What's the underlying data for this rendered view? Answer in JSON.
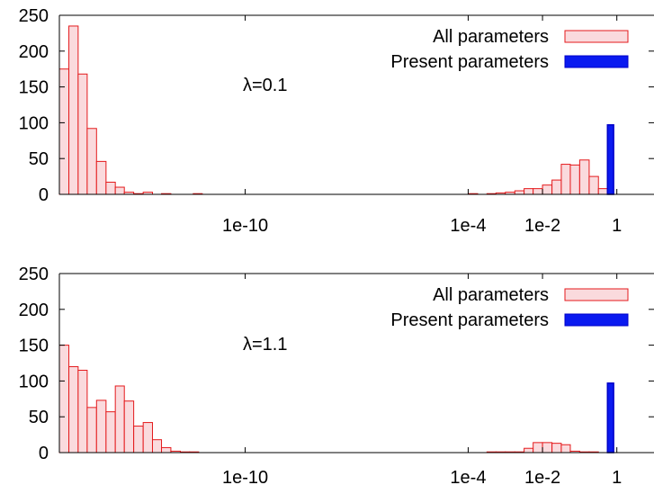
{
  "chart_data": [
    {
      "type": "bar",
      "annotation": "λ=0.1",
      "x_scale": "log",
      "xlim": [
        1e-15,
        10
      ],
      "x_ticks": [
        {
          "value": 1e-10,
          "label": "1e-10"
        },
        {
          "value": 0.0001,
          "label": "1e-4"
        },
        {
          "value": 0.01,
          "label": "1e-2"
        },
        {
          "value": 1,
          "label": "1"
        }
      ],
      "ylim": [
        0,
        250
      ],
      "y_ticks": [
        {
          "value": 0,
          "label": "0"
        },
        {
          "value": 50,
          "label": "50"
        },
        {
          "value": 100,
          "label": "100"
        },
        {
          "value": 150,
          "label": "150"
        },
        {
          "value": 200,
          "label": "200"
        },
        {
          "value": 250,
          "label": "250"
        }
      ],
      "grid": false,
      "legend_position": "top-right",
      "series": [
        {
          "name": "All parameters",
          "color_fill": "#fadadd",
          "color_edge": "#e41a1c",
          "bins": [
            {
              "x0": 1e-15,
              "x1": 1.8e-15,
              "value": 175
            },
            {
              "x0": 1.8e-15,
              "x1": 3.2e-15,
              "value": 235
            },
            {
              "x0": 3.2e-15,
              "x1": 5.6e-15,
              "value": 168
            },
            {
              "x0": 5.6e-15,
              "x1": 1e-14,
              "value": 92
            },
            {
              "x0": 1e-14,
              "x1": 1.8e-14,
              "value": 46
            },
            {
              "x0": 1.8e-14,
              "x1": 3.2e-14,
              "value": 17
            },
            {
              "x0": 3.2e-14,
              "x1": 5.6e-14,
              "value": 10
            },
            {
              "x0": 5.6e-14,
              "x1": 1e-13,
              "value": 3
            },
            {
              "x0": 1e-13,
              "x1": 1.8e-13,
              "value": 1
            },
            {
              "x0": 1.8e-13,
              "x1": 3.2e-13,
              "value": 3
            },
            {
              "x0": 3.2e-13,
              "x1": 5.6e-13,
              "value": 0
            },
            {
              "x0": 5.6e-13,
              "x1": 1e-12,
              "value": 1
            },
            {
              "x0": 4e-12,
              "x1": 7e-12,
              "value": 1
            },
            {
              "x0": 0.0001,
              "x1": 0.00018,
              "value": 1
            },
            {
              "x0": 0.00032,
              "x1": 0.00056,
              "value": 1
            },
            {
              "x0": 0.00056,
              "x1": 0.001,
              "value": 2
            },
            {
              "x0": 0.001,
              "x1": 0.0018,
              "value": 3
            },
            {
              "x0": 0.0018,
              "x1": 0.0032,
              "value": 5
            },
            {
              "x0": 0.0032,
              "x1": 0.0056,
              "value": 8
            },
            {
              "x0": 0.0056,
              "x1": 0.01,
              "value": 8
            },
            {
              "x0": 0.01,
              "x1": 0.018,
              "value": 13
            },
            {
              "x0": 0.018,
              "x1": 0.032,
              "value": 20
            },
            {
              "x0": 0.032,
              "x1": 0.056,
              "value": 42
            },
            {
              "x0": 0.056,
              "x1": 0.1,
              "value": 41
            },
            {
              "x0": 0.1,
              "x1": 0.18,
              "value": 48
            },
            {
              "x0": 0.18,
              "x1": 0.32,
              "value": 25
            },
            {
              "x0": 0.32,
              "x1": 0.56,
              "value": 8
            }
          ]
        },
        {
          "name": "Present parameters",
          "color_fill": "#0a1af0",
          "color_edge": "#0000c8",
          "bins": [
            {
              "x0": 0.56,
              "x1": 0.82,
              "value": 97
            }
          ]
        }
      ]
    },
    {
      "type": "bar",
      "annotation": "λ=1.1",
      "x_scale": "log",
      "xlim": [
        1e-15,
        10
      ],
      "x_ticks": [
        {
          "value": 1e-10,
          "label": "1e-10"
        },
        {
          "value": 0.0001,
          "label": "1e-4"
        },
        {
          "value": 0.01,
          "label": "1e-2"
        },
        {
          "value": 1,
          "label": "1"
        }
      ],
      "ylim": [
        0,
        250
      ],
      "y_ticks": [
        {
          "value": 0,
          "label": "0"
        },
        {
          "value": 50,
          "label": "50"
        },
        {
          "value": 100,
          "label": "100"
        },
        {
          "value": 150,
          "label": "150"
        },
        {
          "value": 200,
          "label": "200"
        },
        {
          "value": 250,
          "label": "250"
        }
      ],
      "grid": false,
      "legend_position": "top-right",
      "series": [
        {
          "name": "All parameters",
          "color_fill": "#fadadd",
          "color_edge": "#e41a1c",
          "bins": [
            {
              "x0": 1e-15,
              "x1": 1.8e-15,
              "value": 150
            },
            {
              "x0": 1.8e-15,
              "x1": 3.2e-15,
              "value": 120
            },
            {
              "x0": 3.2e-15,
              "x1": 5.6e-15,
              "value": 115
            },
            {
              "x0": 5.6e-15,
              "x1": 1e-14,
              "value": 63
            },
            {
              "x0": 1e-14,
              "x1": 1.8e-14,
              "value": 73
            },
            {
              "x0": 1.8e-14,
              "x1": 3.2e-14,
              "value": 57
            },
            {
              "x0": 3.2e-14,
              "x1": 5.6e-14,
              "value": 93
            },
            {
              "x0": 5.6e-14,
              "x1": 1e-13,
              "value": 72
            },
            {
              "x0": 1e-13,
              "x1": 1.8e-13,
              "value": 37
            },
            {
              "x0": 1.8e-13,
              "x1": 3.2e-13,
              "value": 42
            },
            {
              "x0": 3.2e-13,
              "x1": 5.6e-13,
              "value": 18
            },
            {
              "x0": 5.6e-13,
              "x1": 1e-12,
              "value": 7
            },
            {
              "x0": 1e-12,
              "x1": 1.8e-12,
              "value": 2
            },
            {
              "x0": 1.8e-12,
              "x1": 3.2e-12,
              "value": 1
            },
            {
              "x0": 3.2e-12,
              "x1": 5.6e-12,
              "value": 1
            },
            {
              "x0": 0.00032,
              "x1": 0.00056,
              "value": 1
            },
            {
              "x0": 0.00056,
              "x1": 0.001,
              "value": 1
            },
            {
              "x0": 0.001,
              "x1": 0.0018,
              "value": 1
            },
            {
              "x0": 0.0018,
              "x1": 0.0032,
              "value": 1
            },
            {
              "x0": 0.0032,
              "x1": 0.0056,
              "value": 6
            },
            {
              "x0": 0.0056,
              "x1": 0.01,
              "value": 14
            },
            {
              "x0": 0.01,
              "x1": 0.018,
              "value": 14
            },
            {
              "x0": 0.018,
              "x1": 0.032,
              "value": 13
            },
            {
              "x0": 0.032,
              "x1": 0.056,
              "value": 11
            },
            {
              "x0": 0.056,
              "x1": 0.1,
              "value": 2
            },
            {
              "x0": 0.1,
              "x1": 0.18,
              "value": 1
            },
            {
              "x0": 0.18,
              "x1": 0.32,
              "value": 1
            }
          ]
        },
        {
          "name": "Present parameters",
          "color_fill": "#0a1af0",
          "color_edge": "#0000c8",
          "bins": [
            {
              "x0": 0.56,
              "x1": 0.82,
              "value": 97
            }
          ]
        }
      ]
    }
  ]
}
